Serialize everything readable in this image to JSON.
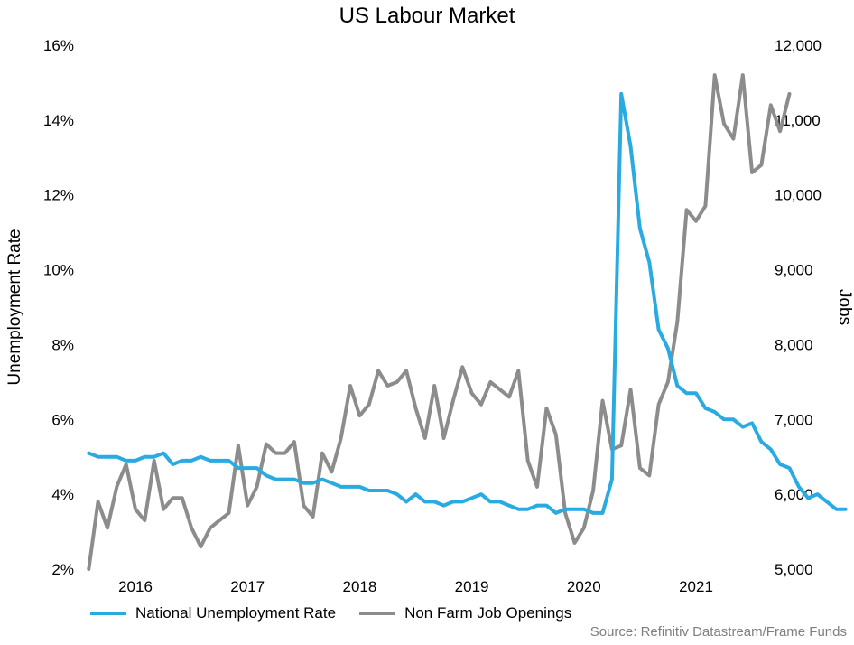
{
  "chart_data": {
    "type": "line",
    "title": "US Labour Market",
    "ylabel_left": "Unemployment Rate",
    "ylabel_right": "Jobs",
    "source": "Source: Refinitiv Datastream/Frame Funds",
    "ylim_left": [
      2,
      16
    ],
    "ylim_right": [
      5000,
      12000
    ],
    "yticks_left": [
      "2%",
      "4%",
      "6%",
      "8%",
      "10%",
      "12%",
      "14%",
      "16%"
    ],
    "yticks_right": [
      "5,000",
      "6,000",
      "7,000",
      "8,000",
      "9,000",
      "10,000",
      "11,000",
      "12,000"
    ],
    "xticks": [
      "2016",
      "2017",
      "2018",
      "2019",
      "2020",
      "2021"
    ],
    "x_start": "2015-08",
    "grid": false,
    "legend_position": "bottom-left",
    "series": [
      {
        "name": "National Unemployment Rate",
        "axis": "left",
        "color": "#29abe2",
        "values": [
          5.1,
          5.0,
          5.0,
          5.0,
          4.9,
          4.9,
          5.0,
          5.0,
          5.1,
          4.8,
          4.9,
          4.9,
          5.0,
          4.9,
          4.9,
          4.9,
          4.7,
          4.7,
          4.7,
          4.5,
          4.4,
          4.4,
          4.4,
          4.3,
          4.3,
          4.4,
          4.3,
          4.2,
          4.2,
          4.2,
          4.1,
          4.1,
          4.1,
          4.0,
          3.8,
          4.0,
          3.8,
          3.8,
          3.7,
          3.8,
          3.8,
          3.9,
          4.0,
          3.8,
          3.8,
          3.7,
          3.6,
          3.6,
          3.7,
          3.7,
          3.5,
          3.6,
          3.6,
          3.6,
          3.5,
          3.5,
          4.4,
          14.7,
          13.3,
          11.1,
          10.2,
          8.4,
          7.9,
          6.9,
          6.7,
          6.7,
          6.3,
          6.2,
          6.0,
          6.0,
          5.8,
          5.9,
          5.4,
          5.2,
          4.8,
          4.7,
          4.2,
          3.9,
          4.0,
          3.8,
          3.6,
          3.6
        ]
      },
      {
        "name": "Non Farm Job Openings",
        "axis": "right",
        "color": "#8c8c8c",
        "values": [
          5000,
          5900,
          5550,
          6100,
          6400,
          5800,
          5650,
          6450,
          5800,
          5950,
          5950,
          5550,
          5300,
          5550,
          5650,
          5750,
          6650,
          5850,
          6100,
          6670,
          6550,
          6550,
          6700,
          5850,
          5700,
          6550,
          6300,
          6750,
          7450,
          7050,
          7200,
          7650,
          7450,
          7500,
          7650,
          7150,
          6750,
          7450,
          6750,
          7250,
          7700,
          7350,
          7200,
          7500,
          7400,
          7300,
          7650,
          6450,
          6100,
          7150,
          6800,
          5750,
          5350,
          5550,
          6050,
          7250,
          6600,
          6650,
          7400,
          6350,
          6250,
          7200,
          7500,
          8300,
          9800,
          9650,
          9850,
          11600,
          10950,
          10750,
          11600,
          10300,
          10400,
          11200,
          10850,
          11350
        ]
      }
    ]
  }
}
